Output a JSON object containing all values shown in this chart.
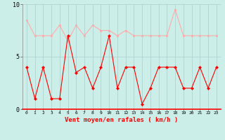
{
  "x": [
    0,
    1,
    2,
    3,
    4,
    5,
    6,
    7,
    8,
    9,
    10,
    11,
    12,
    13,
    14,
    15,
    16,
    17,
    18,
    19,
    20,
    21,
    22,
    23
  ],
  "vent_moyen": [
    4,
    1,
    4,
    1,
    1,
    7,
    3.5,
    4,
    2,
    4,
    7,
    2,
    4,
    4,
    0.5,
    2,
    4,
    4,
    4,
    2,
    2,
    4,
    2,
    4
  ],
  "rafales": [
    8.5,
    7,
    7,
    7,
    8,
    6.5,
    8,
    7,
    8,
    7.5,
    7.5,
    7,
    7.5,
    7,
    7,
    7,
    7,
    7,
    9.5,
    7,
    7,
    7,
    7,
    7
  ],
  "color_moyen": "#ff0000",
  "color_rafales": "#ffaaaa",
  "bg_color": "#cceee8",
  "grid_color": "#aacccc",
  "xlabel": "Vent moyen/en rafales ( km/h )",
  "xlabel_color": "#ff0000",
  "ylim": [
    0,
    10
  ],
  "xlim": [
    -0.5,
    23.5
  ],
  "tick_labels": [
    "0",
    "1",
    "2",
    "3",
    "4",
    "5",
    "6",
    "7",
    "8",
    "9",
    "10",
    "11",
    "12",
    "13",
    "14",
    "15",
    "16",
    "17",
    "18",
    "19",
    "20",
    "21",
    "22",
    "23"
  ],
  "yticks": [
    0,
    5,
    10
  ]
}
